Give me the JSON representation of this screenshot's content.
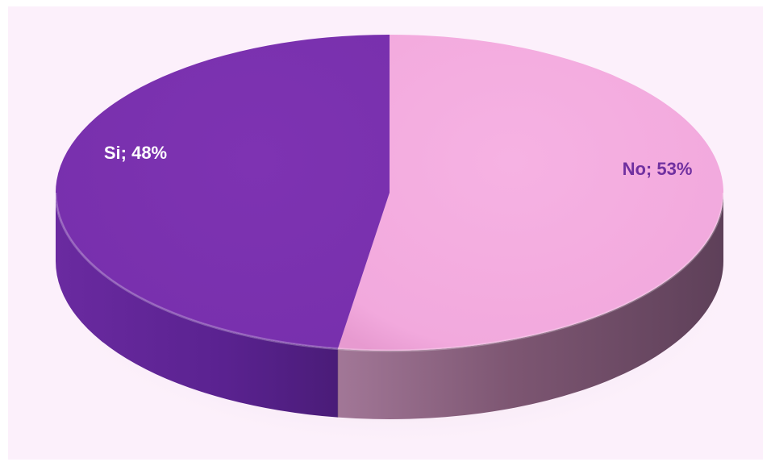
{
  "chart_data": {
    "type": "pie",
    "style": "3d",
    "title": "",
    "legend": "none",
    "slices": [
      {
        "label": "No",
        "value": 53,
        "display": "No; 53%",
        "color": "#f4ade0",
        "side_color": "#8a5f7f",
        "label_color": "#7030a0"
      },
      {
        "label": "Si",
        "value": 48,
        "display": "Si; 48%",
        "color": "#7b30af",
        "side_color": "#5c2488",
        "label_color": "#ffffff"
      }
    ]
  },
  "colors": {
    "background": "#fcf0fb"
  }
}
